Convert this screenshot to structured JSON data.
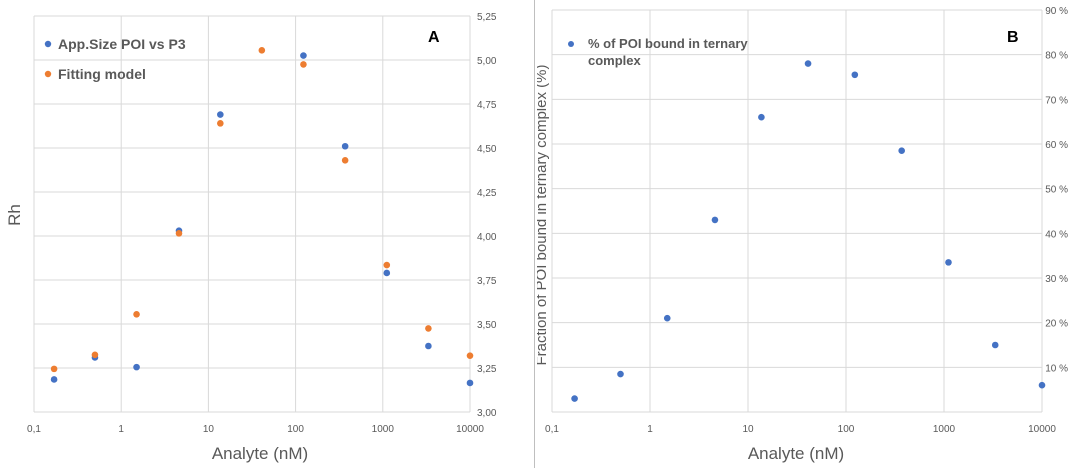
{
  "colors": {
    "blue": "#4472c4",
    "orange": "#ed7d31",
    "grid": "#d9d9d9",
    "text": "#595959"
  },
  "chart_data": [
    {
      "type": "scatter",
      "panel_label": "A",
      "xlabel": "Analyte (nM)",
      "ylabel": "Rh",
      "x_scale": "log",
      "xlim": [
        0.1,
        10000
      ],
      "ylim": [
        3.0,
        5.25
      ],
      "x_ticks": [
        "0,1",
        "1",
        "10",
        "100",
        "1000",
        "10000"
      ],
      "y_ticks": [
        "3,00",
        "3,25",
        "3,50",
        "3,75",
        "4,00",
        "4,25",
        "4,50",
        "4,75",
        "5,00",
        "5,25"
      ],
      "grid": true,
      "legend_position": "top-left",
      "series": [
        {
          "name": "App.Size POI vs P3",
          "color": "#4472c4",
          "x": [
            0.17,
            0.5,
            1.5,
            4.6,
            13.7,
            123,
            370,
            1111,
            3333,
            10000
          ],
          "y": [
            3.185,
            3.31,
            3.255,
            4.03,
            4.69,
            5.025,
            4.51,
            3.79,
            3.375,
            3.165
          ]
        },
        {
          "name": "Fitting model",
          "color": "#ed7d31",
          "x": [
            0.17,
            0.5,
            1.5,
            4.6,
            13.7,
            41,
            123,
            370,
            1111,
            3333,
            10000
          ],
          "y": [
            3.245,
            3.325,
            3.555,
            4.015,
            4.64,
            5.055,
            4.975,
            4.43,
            3.835,
            3.475,
            3.32
          ]
        }
      ]
    },
    {
      "type": "scatter",
      "panel_label": "B",
      "xlabel": "Analyte  (nM)",
      "ylabel": "Fraction of POI bound in ternary complex (%)",
      "x_scale": "log",
      "xlim": [
        0.1,
        10000
      ],
      "ylim": [
        0,
        90
      ],
      "x_ticks": [
        "0,1",
        "1",
        "10",
        "100",
        "1000",
        "10000"
      ],
      "y_ticks": [
        "",
        "10 %",
        "20 %",
        "30 %",
        "40 %",
        "50 %",
        "60 %",
        "70 %",
        "80 %",
        "90 %"
      ],
      "grid": true,
      "legend_position": "top-left",
      "series": [
        {
          "name": "% of POI bound in ternary complex",
          "color": "#4472c4",
          "x": [
            0.17,
            0.5,
            1.5,
            4.6,
            13.7,
            41,
            123,
            370,
            1111,
            3333,
            10000
          ],
          "y": [
            3,
            8.5,
            21,
            43,
            66,
            78,
            75.5,
            58.5,
            33.5,
            15,
            6
          ]
        }
      ]
    }
  ]
}
